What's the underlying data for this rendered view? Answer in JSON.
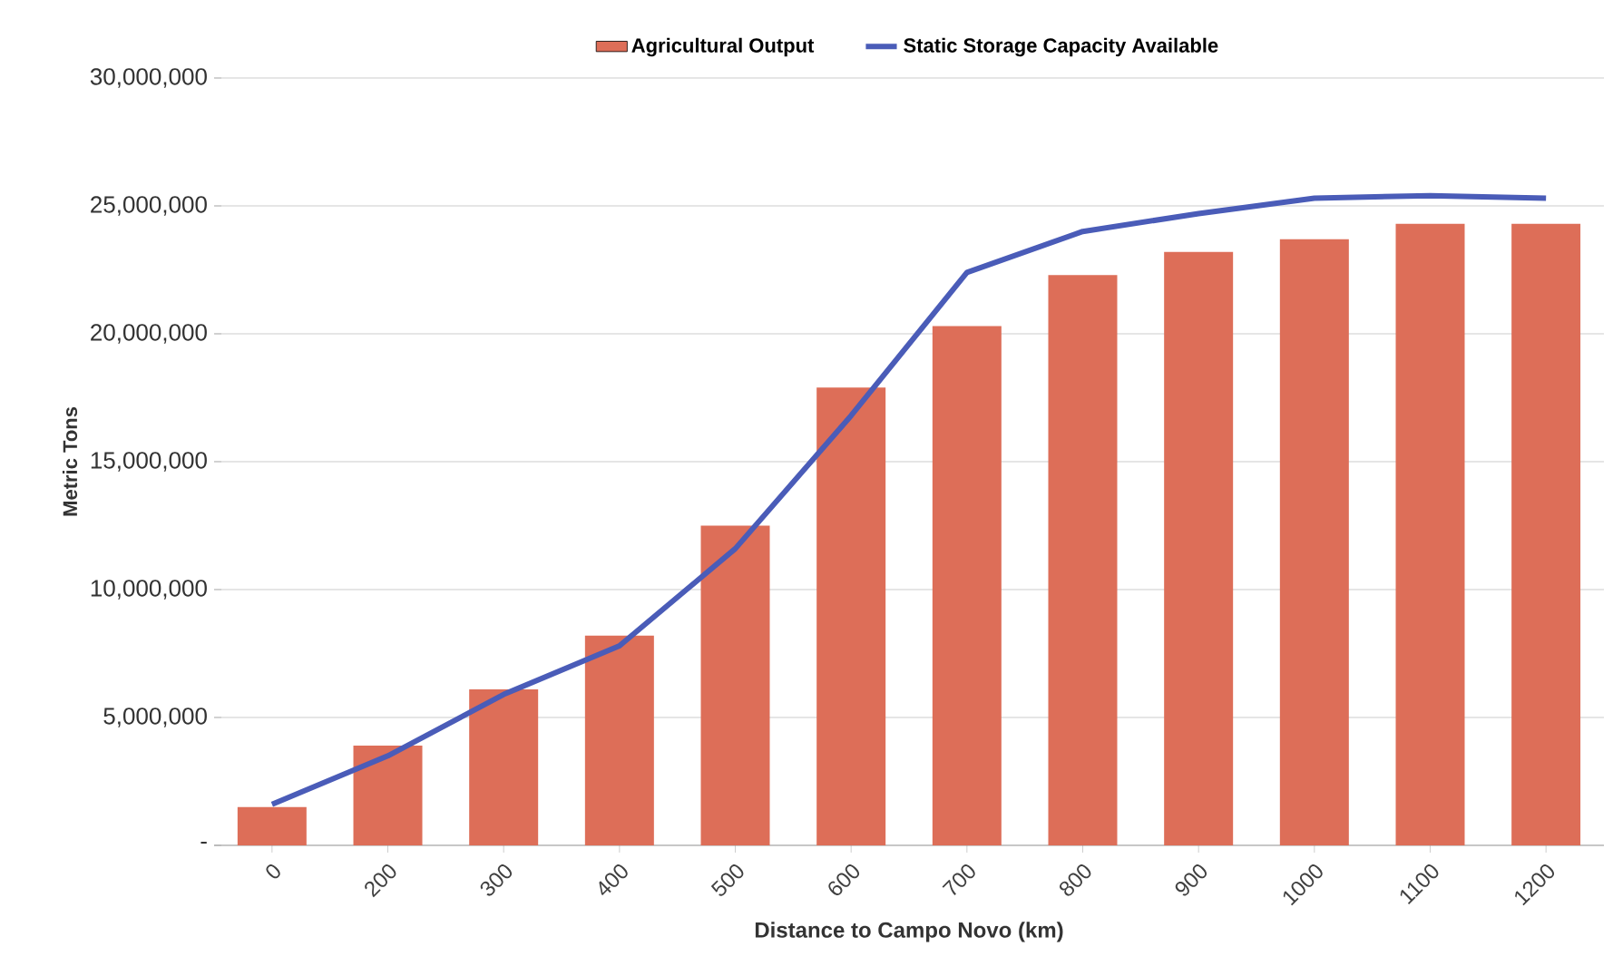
{
  "chart_data": {
    "type": "bar",
    "xlabel": "Distance to Campo Novo (km)",
    "ylabel": "Metric Tons",
    "categories": [
      "0",
      "200",
      "300",
      "400",
      "500",
      "600",
      "700",
      "800",
      "900",
      "1000",
      "1100",
      "1200"
    ],
    "series": [
      {
        "name": "Agricultural Output",
        "color": "#dd6e58",
        "values": [
          1500000,
          3900000,
          6100000,
          8200000,
          12500000,
          17900000,
          20300000,
          22300000,
          23200000,
          23700000,
          24300000,
          24300000
        ]
      },
      {
        "name": "Static Storage Capacity Available",
        "type": "line",
        "color": "#4a5cb8",
        "values": [
          1600000,
          3500000,
          5900000,
          7800000,
          11600000,
          16800000,
          22400000,
          24000000,
          24700000,
          25300000,
          25400000,
          25300000
        ]
      }
    ],
    "ylim": [
      0,
      30000000
    ],
    "yticks": [
      {
        "value": 0,
        "label": "-"
      },
      {
        "value": 5000000,
        "label": "5,000,000"
      },
      {
        "value": 10000000,
        "label": "10,000,000"
      },
      {
        "value": 15000000,
        "label": "15,000,000"
      },
      {
        "value": 20000000,
        "label": "20,000,000"
      },
      {
        "value": 25000000,
        "label": "25,000,000"
      },
      {
        "value": 30000000,
        "label": "30,000,000"
      }
    ],
    "grid": "y",
    "legend": "top",
    "marker": "none"
  }
}
